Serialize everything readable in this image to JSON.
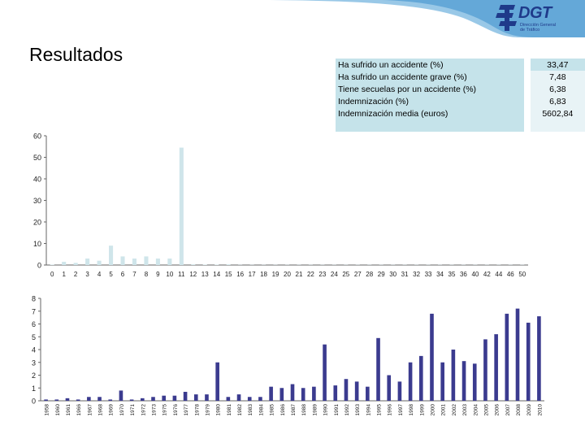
{
  "header": {
    "logo_name": "DGT",
    "logo_subtitle": [
      "Dirección General",
      "de Tráfico"
    ],
    "colors": {
      "band": "#7fb7dc",
      "logo": "#1f3a8a"
    }
  },
  "title": "Resultados",
  "stats": [
    {
      "label": "Ha sufrido un accidente (%)",
      "value": "33,47"
    },
    {
      "label": "Ha sufrido un accidente grave (%)",
      "value": "7,48"
    },
    {
      "label": "Tiene secuelas por un accidente (%)",
      "value": "6,38"
    },
    {
      "label": "Indemnización (%)",
      "value": "6,83"
    },
    {
      "label": "Indemnización media (euros)",
      "value": "5602,84"
    }
  ],
  "chart_data": [
    {
      "type": "bar",
      "color": "#cfe5ea",
      "ylim": [
        0,
        60
      ],
      "yticks": [
        0,
        10,
        20,
        30,
        40,
        50,
        60
      ],
      "grid": false,
      "legend": "none",
      "categories": [
        "0",
        "1",
        "2",
        "3",
        "4",
        "5",
        "6",
        "7",
        "8",
        "9",
        "10",
        "11",
        "12",
        "13",
        "14",
        "15",
        "16",
        "17",
        "18",
        "19",
        "20",
        "21",
        "22",
        "23",
        "24",
        "25",
        "27",
        "28",
        "29",
        "30",
        "31",
        "32",
        "33",
        "34",
        "35",
        "36",
        "40",
        "42",
        "44",
        "46",
        "50"
      ],
      "values": [
        0.2,
        1.5,
        1,
        3,
        2,
        9,
        4,
        3,
        4,
        3,
        3,
        54.5,
        0.3,
        0.2,
        0.2,
        0.3,
        0.1,
        0.1,
        0.1,
        0.1,
        0.1,
        0.1,
        0.1,
        0.1,
        0.1,
        0.1,
        0.1,
        0.1,
        0.1,
        0.1,
        0.1,
        0.1,
        0.1,
        0.1,
        0.1,
        0.1,
        0.1,
        0.1,
        0.1,
        0.1,
        0.1
      ]
    },
    {
      "type": "bar",
      "color": "#3b3b8f",
      "ylim": [
        0,
        8
      ],
      "yticks": [
        0,
        1,
        2,
        3,
        4,
        5,
        6,
        7,
        8
      ],
      "grid": false,
      "legend": "none",
      "categories": [
        "1958",
        "1960",
        "1961",
        "1966",
        "1967",
        "1968",
        "1969",
        "1970",
        "1971",
        "1972",
        "1973",
        "1975",
        "1976",
        "1977",
        "1978",
        "1979",
        "1980",
        "1981",
        "1982",
        "1983",
        "1984",
        "1985",
        "1986",
        "1987",
        "1988",
        "1989",
        "1990",
        "1991",
        "1992",
        "1993",
        "1994",
        "1995",
        "1996",
        "1997",
        "1998",
        "1999",
        "2000",
        "2001",
        "2002",
        "2003",
        "2004",
        "2005",
        "2006",
        "2007",
        "2008",
        "2009",
        "2010"
      ],
      "values": [
        0.1,
        0.1,
        0.2,
        0.1,
        0.3,
        0.3,
        0.1,
        0.8,
        0.1,
        0.2,
        0.3,
        0.4,
        0.4,
        0.7,
        0.5,
        0.5,
        3.0,
        0.3,
        0.5,
        0.3,
        0.3,
        1.1,
        1.0,
        1.3,
        1.0,
        1.1,
        4.4,
        1.2,
        1.7,
        1.5,
        1.1,
        4.9,
        2.0,
        1.5,
        3.0,
        3.5,
        6.8,
        3.0,
        4.0,
        3.1,
        2.9,
        4.8,
        5.2,
        6.8,
        7.2,
        6.1,
        6.6
      ]
    }
  ]
}
